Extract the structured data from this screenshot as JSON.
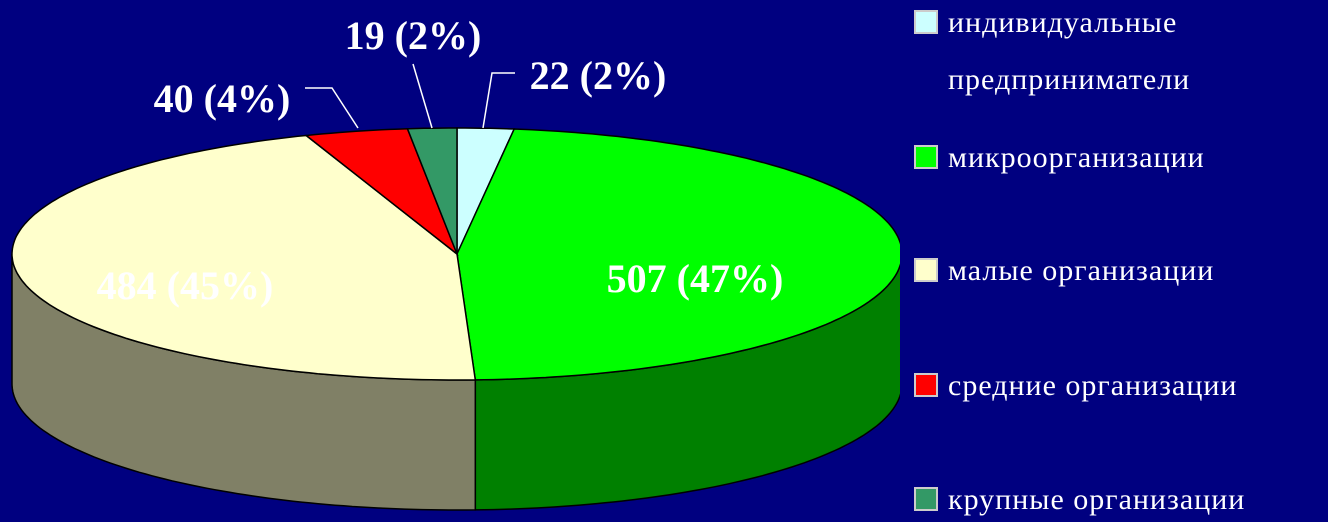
{
  "chart_data": {
    "type": "pie3d",
    "series": [
      {
        "name": "индивидуальные предприниматели",
        "color": "#ccffff"
      },
      {
        "name": "микроорганизации",
        "color": "#00ff00"
      },
      {
        "name": "малые организации",
        "color": "#ffffcc"
      },
      {
        "name": "средние организации",
        "color": "#ff0000"
      },
      {
        "name": "крупные организации",
        "color": "#339966"
      }
    ],
    "values": [
      22,
      507,
      484,
      40,
      19
    ],
    "value_labels": [
      "22 (2%)",
      "507 (47%)",
      "484 (45%)",
      "40 (4%)",
      "19 (2%)"
    ],
    "legend": "right"
  }
}
